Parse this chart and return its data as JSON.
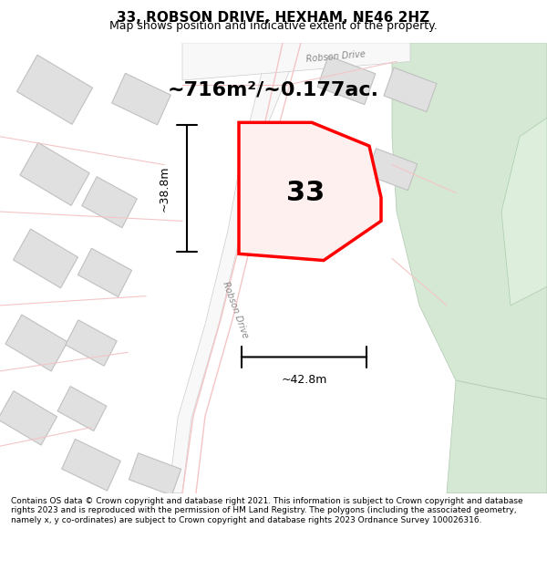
{
  "title": "33, ROBSON DRIVE, HEXHAM, NE46 2HZ",
  "subtitle": "Map shows position and indicative extent of the property.",
  "area_label": "~716m²/~0.177ac.",
  "number_label": "33",
  "width_label": "~42.8m",
  "height_label": "~38.8m",
  "footer_text": "Contains OS data © Crown copyright and database right 2021. This information is subject to Crown copyright and database rights 2023 and is reproduced with the permission of HM Land Registry. The polygons (including the associated geometry, namely x, y co-ordinates) are subject to Crown copyright and database rights 2023 Ordnance Survey 100026316.",
  "bg_color": "#f5f5f5",
  "map_bg": "#f0f0f0",
  "green_area_color": "#d4e8d4",
  "road_color": "#f5c5c5",
  "building_color": "#e0e0e0",
  "building_stroke": "#cccccc",
  "plot_color": "#ff0000",
  "road_label": "Robson Drive",
  "road_label2": "Robson Drive"
}
